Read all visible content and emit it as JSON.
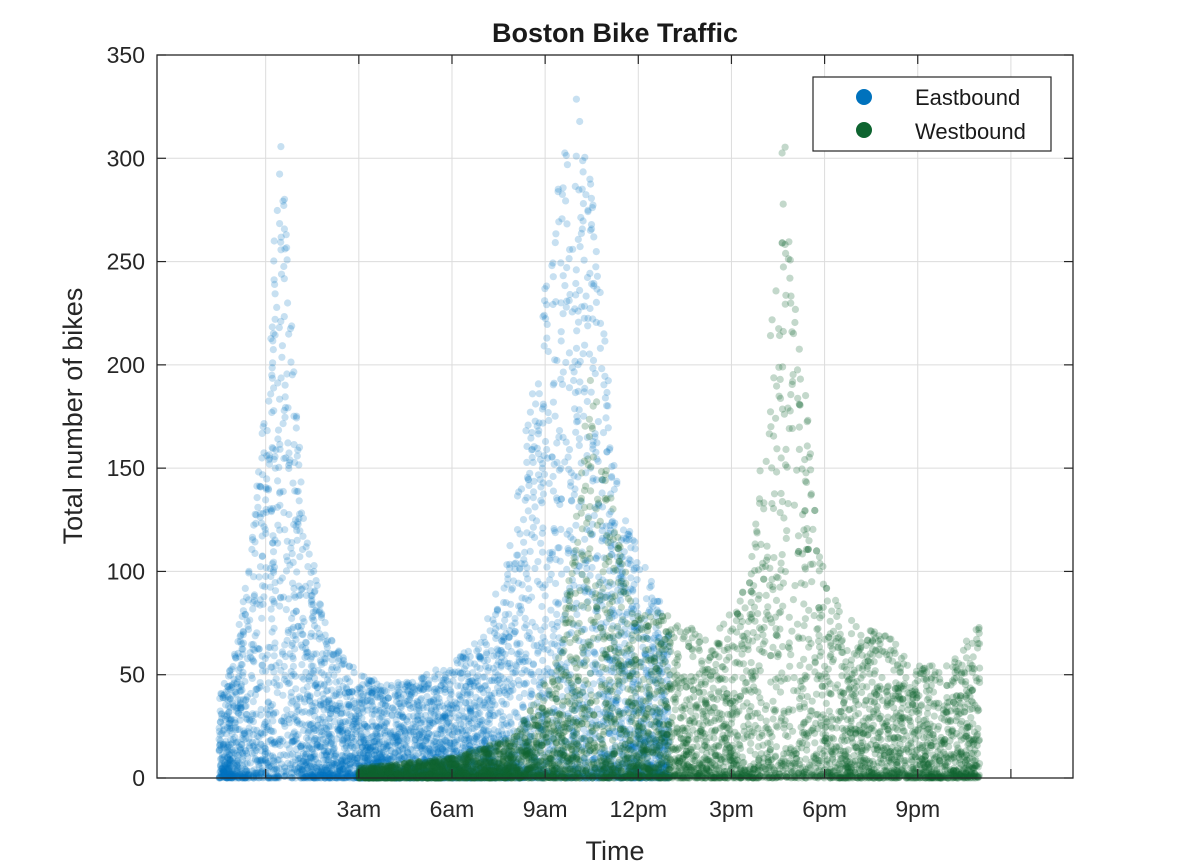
{
  "chart_data": {
    "type": "scatter",
    "title": "Boston Bike Traffic",
    "xlabel": "Time",
    "ylabel": "Total number of bikes",
    "xlim": [
      -3.5,
      26
    ],
    "ylim": [
      0,
      350
    ],
    "xticks": [
      {
        "value": 3,
        "label": "3am"
      },
      {
        "value": 6,
        "label": "6am"
      },
      {
        "value": 9,
        "label": "9am"
      },
      {
        "value": 12,
        "label": "12pm"
      },
      {
        "value": 15,
        "label": "3pm"
      },
      {
        "value": 18,
        "label": "6pm"
      },
      {
        "value": 21,
        "label": "9pm"
      }
    ],
    "yticks": [
      0,
      50,
      100,
      150,
      200,
      250,
      300,
      350
    ],
    "grid": true,
    "legend_position": "top-right",
    "series": [
      {
        "name": "Eastbound",
        "color": "#0072BD",
        "point_count_approx": 6000,
        "envelope": [
          {
            "x": -1.5,
            "ymax": 40
          },
          {
            "x": -1.0,
            "ymax": 60
          },
          {
            "x": -0.5,
            "ymax": 110
          },
          {
            "x": 0.0,
            "ymax": 190
          },
          {
            "x": 0.3,
            "ymax": 270
          },
          {
            "x": 0.5,
            "ymax": 310
          },
          {
            "x": 0.8,
            "ymax": 240
          },
          {
            "x": 1.2,
            "ymax": 130
          },
          {
            "x": 1.6,
            "ymax": 100
          },
          {
            "x": 2.0,
            "ymax": 70
          },
          {
            "x": 3.0,
            "ymax": 50
          },
          {
            "x": 4.0,
            "ymax": 45
          },
          {
            "x": 5.0,
            "ymax": 50
          },
          {
            "x": 6.0,
            "ymax": 55
          },
          {
            "x": 7.0,
            "ymax": 70
          },
          {
            "x": 7.8,
            "ymax": 110
          },
          {
            "x": 8.5,
            "ymax": 180
          },
          {
            "x": 9.0,
            "ymax": 240
          },
          {
            "x": 9.5,
            "ymax": 300
          },
          {
            "x": 10.0,
            "ymax": 335
          },
          {
            "x": 10.5,
            "ymax": 290
          },
          {
            "x": 11.0,
            "ymax": 200
          },
          {
            "x": 11.5,
            "ymax": 130
          },
          {
            "x": 12.0,
            "ymax": 110
          },
          {
            "x": 12.5,
            "ymax": 95
          },
          {
            "x": 13.0,
            "ymax": 70
          }
        ]
      },
      {
        "name": "Westbound",
        "color": "#0E6430",
        "point_count_approx": 6000,
        "envelope": [
          {
            "x": 3.0,
            "ymax": 5
          },
          {
            "x": 6.0,
            "ymax": 10
          },
          {
            "x": 8.0,
            "ymax": 20
          },
          {
            "x": 9.5,
            "ymax": 60
          },
          {
            "x": 10.5,
            "ymax": 200
          },
          {
            "x": 11.0,
            "ymax": 150
          },
          {
            "x": 11.5,
            "ymax": 110
          },
          {
            "x": 12.0,
            "ymax": 80
          },
          {
            "x": 13.0,
            "ymax": 80
          },
          {
            "x": 14.0,
            "ymax": 70
          },
          {
            "x": 15.0,
            "ymax": 80
          },
          {
            "x": 15.8,
            "ymax": 130
          },
          {
            "x": 16.3,
            "ymax": 230
          },
          {
            "x": 16.7,
            "ymax": 318
          },
          {
            "x": 17.2,
            "ymax": 230
          },
          {
            "x": 17.6,
            "ymax": 150
          },
          {
            "x": 18.0,
            "ymax": 95
          },
          {
            "x": 19.0,
            "ymax": 75
          },
          {
            "x": 20.0,
            "ymax": 70
          },
          {
            "x": 21.0,
            "ymax": 55
          },
          {
            "x": 22.0,
            "ymax": 55
          },
          {
            "x": 23.0,
            "ymax": 75
          }
        ]
      }
    ]
  }
}
